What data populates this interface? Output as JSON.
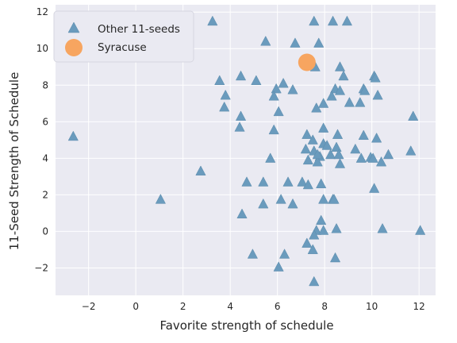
{
  "chart_data": {
    "type": "scatter",
    "xlabel": "Favorite strength of schedule",
    "ylabel": "11-Seed Strength of Schedule",
    "xlim": [
      -3.4,
      12.7
    ],
    "ylim": [
      -3.5,
      12.4
    ],
    "xticks": [
      -2,
      0,
      2,
      4,
      6,
      8,
      10,
      12
    ],
    "yticks": [
      -2,
      0,
      2,
      4,
      6,
      8,
      10,
      12
    ],
    "grid": true,
    "legend_position": "upper-left",
    "series": [
      {
        "name": "Other 11-seeds",
        "marker": "triangle",
        "color": "#6a9bbd",
        "points": [
          [
            3.25,
            11.5
          ],
          [
            5.5,
            10.4
          ],
          [
            6.75,
            10.3
          ],
          [
            7.55,
            11.5
          ],
          [
            8.35,
            11.5
          ],
          [
            8.95,
            11.5
          ],
          [
            7.75,
            10.3
          ],
          [
            7.35,
            9.2
          ],
          [
            7.6,
            9.0
          ],
          [
            8.65,
            9.0
          ],
          [
            10.1,
            8.5
          ],
          [
            10.15,
            8.4
          ],
          [
            3.55,
            8.25
          ],
          [
            4.45,
            8.5
          ],
          [
            5.1,
            8.25
          ],
          [
            6.25,
            8.1
          ],
          [
            5.95,
            7.8
          ],
          [
            6.65,
            7.75
          ],
          [
            5.85,
            7.4
          ],
          [
            8.45,
            7.8
          ],
          [
            8.65,
            7.7
          ],
          [
            8.8,
            8.5
          ],
          [
            8.3,
            7.4
          ],
          [
            7.95,
            7.0
          ],
          [
            7.65,
            6.75
          ],
          [
            9.5,
            7.05
          ],
          [
            9.05,
            7.05
          ],
          [
            9.65,
            7.8
          ],
          [
            9.7,
            7.7
          ],
          [
            10.25,
            7.45
          ],
          [
            11.75,
            6.3
          ],
          [
            3.8,
            7.45
          ],
          [
            3.75,
            6.8
          ],
          [
            4.45,
            6.3
          ],
          [
            4.4,
            5.7
          ],
          [
            6.05,
            6.55
          ],
          [
            5.85,
            5.55
          ],
          [
            -2.65,
            5.2
          ],
          [
            7.25,
            5.3
          ],
          [
            7.95,
            5.65
          ],
          [
            8.55,
            5.3
          ],
          [
            9.65,
            5.25
          ],
          [
            10.2,
            5.1
          ],
          [
            7.5,
            5.0
          ],
          [
            7.2,
            4.5
          ],
          [
            7.55,
            4.4
          ],
          [
            7.95,
            4.8
          ],
          [
            8.1,
            4.7
          ],
          [
            8.5,
            4.6
          ],
          [
            8.25,
            4.2
          ],
          [
            8.6,
            4.2
          ],
          [
            9.3,
            4.5
          ],
          [
            7.3,
            3.9
          ],
          [
            7.8,
            4.1
          ],
          [
            7.7,
            3.8
          ],
          [
            8.65,
            3.7
          ],
          [
            9.55,
            4.0
          ],
          [
            9.95,
            4.05
          ],
          [
            10.05,
            4.0
          ],
          [
            10.4,
            3.8
          ],
          [
            10.7,
            4.2
          ],
          [
            11.65,
            4.4
          ],
          [
            7.7,
            4.2
          ],
          [
            5.7,
            4.0
          ],
          [
            1.05,
            1.75
          ],
          [
            2.75,
            3.3
          ],
          [
            4.7,
            2.7
          ],
          [
            5.4,
            2.7
          ],
          [
            6.45,
            2.7
          ],
          [
            7.05,
            2.7
          ],
          [
            7.3,
            2.55
          ],
          [
            7.85,
            2.6
          ],
          [
            10.1,
            2.35
          ],
          [
            5.4,
            1.5
          ],
          [
            6.15,
            1.75
          ],
          [
            6.65,
            1.5
          ],
          [
            7.95,
            1.75
          ],
          [
            8.35,
            1.75
          ],
          [
            8.4,
            1.75
          ],
          [
            4.5,
            0.95
          ],
          [
            7.85,
            0.6
          ],
          [
            7.65,
            0.05
          ],
          [
            7.95,
            0.05
          ],
          [
            8.5,
            0.15
          ],
          [
            10.45,
            0.15
          ],
          [
            12.05,
            0.05
          ],
          [
            7.55,
            -0.2
          ],
          [
            7.25,
            -0.65
          ],
          [
            7.5,
            -1.0
          ],
          [
            4.95,
            -1.25
          ],
          [
            6.3,
            -1.25
          ],
          [
            8.45,
            -1.45
          ],
          [
            6.05,
            -1.95
          ],
          [
            7.55,
            -2.75
          ]
        ]
      },
      {
        "name": "Syracuse",
        "marker": "circle",
        "color": "#f7a560",
        "points": [
          [
            7.25,
            9.25
          ]
        ]
      }
    ]
  }
}
